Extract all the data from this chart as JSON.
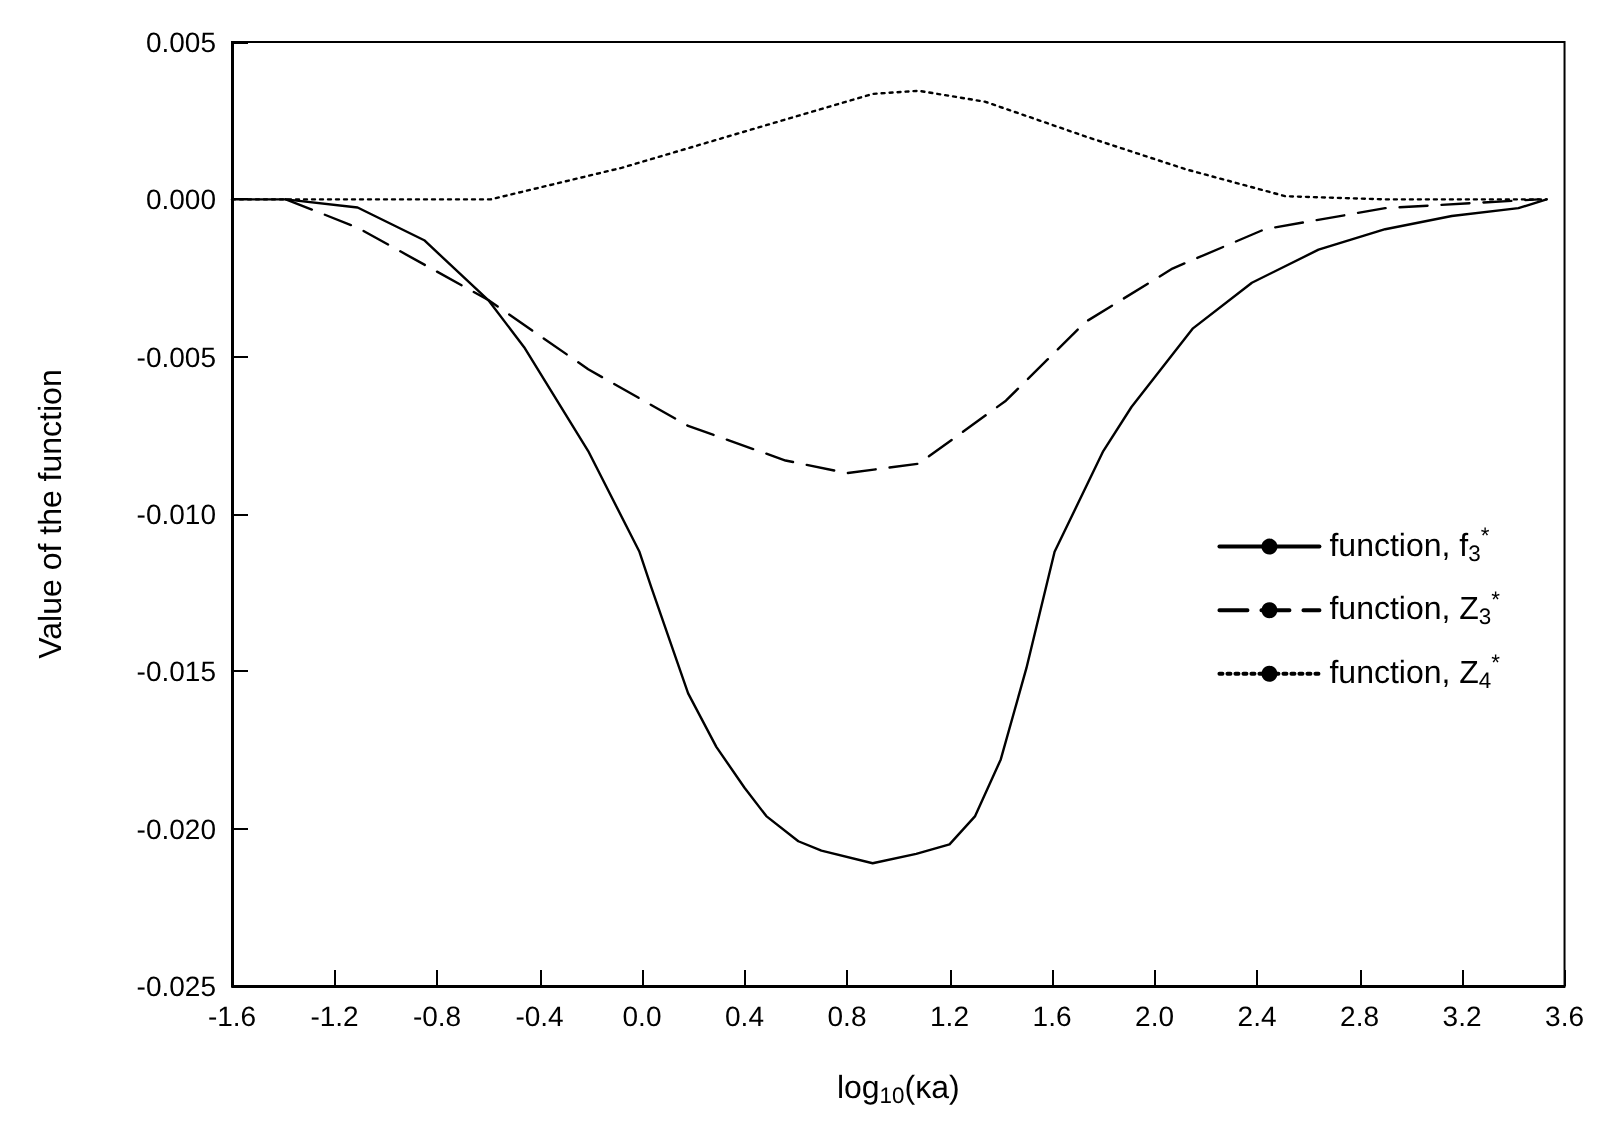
{
  "chart_data": {
    "type": "line",
    "xlabel": "log$_{10}$(κa)",
    "ylabel": "Value of the function",
    "xlim": [
      -1.6,
      3.6
    ],
    "xticks": [
      -1.6,
      -1.2,
      -0.8,
      -0.4,
      {
        "value": 0,
        "label": "0.0"
      },
      0.4,
      0.8,
      1.2,
      1.6,
      {
        "value": 2,
        "label": "2.0"
      },
      2.4,
      2.8,
      3.2,
      3.6
    ],
    "ylim": [
      -0.025,
      0.005
    ],
    "yticks": [
      -0.025,
      {
        "value": -0.02,
        "label": "-0.020"
      },
      -0.015,
      {
        "value": -0.01,
        "label": "-0.010"
      },
      -0.005,
      {
        "value": 0,
        "label": "0.000"
      },
      0.005
    ],
    "grid": false,
    "legend": "right",
    "marker": "none",
    "series": [
      {
        "name": "function, f$_{3}$$^{*}$",
        "color": "#000000",
        "line_style": "solid",
        "x": [
          -1.6,
          -1.39,
          -1.11,
          -0.85,
          -0.6,
          -0.46,
          -0.21,
          -0.01,
          0.035,
          0.18,
          0.29,
          0.4,
          0.485,
          0.61,
          0.7,
          0.9,
          1.07,
          1.2,
          1.3,
          1.4,
          1.5,
          1.61,
          1.8,
          1.91,
          2.15,
          2.38,
          2.64,
          2.9,
          3.16,
          3.42,
          3.53
        ],
        "values": [
          0,
          0,
          -0.00026,
          -0.0013,
          -0.0032,
          -0.0047,
          -0.008,
          -0.0112,
          -0.0123,
          -0.0157,
          -0.0174,
          -0.0187,
          -0.0196,
          -0.0204,
          -0.0207,
          -0.0211,
          -0.0208,
          -0.0205,
          -0.0196,
          -0.0178,
          -0.0149,
          -0.0112,
          -0.008,
          -0.0066,
          -0.0041,
          -0.00265,
          -0.0016,
          -0.00095,
          -0.00053,
          -0.00028,
          0
        ]
      },
      {
        "name": "function, Z$_{3}$$^{*}$",
        "color": "#000000",
        "line_style": "dashed",
        "x": [
          -1.39,
          -1.11,
          -0.6,
          -0.21,
          0.18,
          0.56,
          0.8,
          1.08,
          1.42,
          1.73,
          2.07,
          2.43,
          2.9,
          3.5
        ],
        "values": [
          0,
          -0.0009,
          -0.0032,
          -0.0054,
          -0.0072,
          -0.0083,
          -0.0087,
          -0.0084,
          -0.0064,
          -0.0039,
          -0.0022,
          -0.00095,
          -0.00028,
          0
        ]
      },
      {
        "name": "function, Z$_{4}$$^{*}$",
        "color": "#000000",
        "line_style": "dotted",
        "x": [
          -1.6,
          -1.39,
          -0.8,
          -0.59,
          -0.08,
          0.44,
          0.9,
          1.08,
          1.34,
          1.73,
          2.12,
          2.51,
          2.9,
          3.53
        ],
        "values": [
          0,
          0,
          0,
          0,
          0.001,
          0.00225,
          0.00335,
          0.00345,
          0.0031,
          0.002,
          0.00096,
          0.0001,
          0,
          0
        ]
      }
    ]
  }
}
